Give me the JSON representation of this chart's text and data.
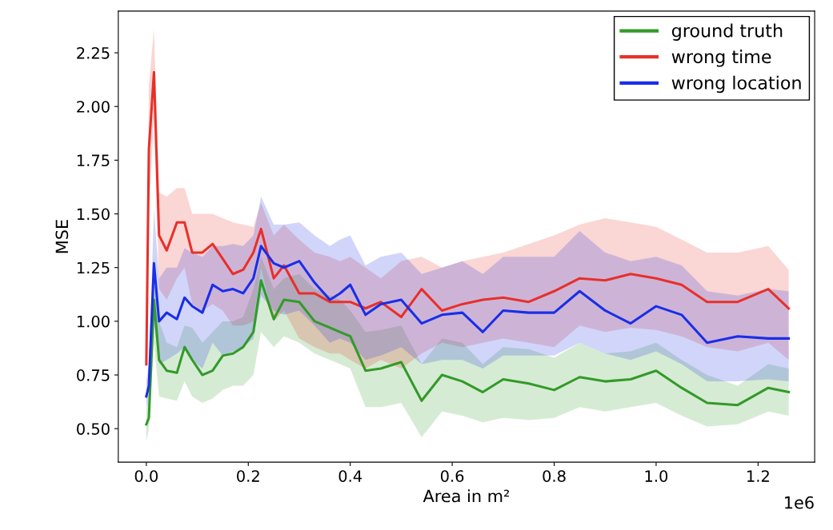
{
  "chart_data": {
    "type": "line",
    "xlabel": "Area in m²",
    "ylabel": "MSE",
    "x": [
      0,
      0.005,
      0.015,
      0.025,
      0.04,
      0.06,
      0.075,
      0.09,
      0.11,
      0.13,
      0.15,
      0.17,
      0.19,
      0.21,
      0.225,
      0.25,
      0.27,
      0.3,
      0.33,
      0.36,
      0.38,
      0.4,
      0.43,
      0.46,
      0.5,
      0.54,
      0.58,
      0.62,
      0.66,
      0.7,
      0.75,
      0.8,
      0.85,
      0.9,
      0.95,
      1.0,
      1.05,
      1.1,
      1.16,
      1.22,
      1.26
    ],
    "series": [
      {
        "name": "ground truth",
        "color": "#339a2a",
        "values": [
          0.52,
          0.55,
          1.1,
          0.82,
          0.77,
          0.76,
          0.88,
          0.82,
          0.75,
          0.77,
          0.84,
          0.85,
          0.88,
          0.95,
          1.19,
          1.01,
          1.1,
          1.09,
          1.0,
          0.97,
          0.95,
          0.93,
          0.77,
          0.78,
          0.81,
          0.63,
          0.75,
          0.72,
          0.67,
          0.73,
          0.71,
          0.68,
          0.74,
          0.72,
          0.73,
          0.77,
          0.69,
          0.62,
          0.61,
          0.69,
          0.67
        ],
        "lower": [
          0.44,
          0.5,
          0.9,
          0.65,
          0.64,
          0.63,
          0.72,
          0.65,
          0.62,
          0.64,
          0.68,
          0.7,
          0.7,
          0.75,
          0.95,
          0.88,
          0.93,
          0.9,
          0.85,
          0.82,
          0.8,
          0.78,
          0.6,
          0.6,
          0.62,
          0.46,
          0.58,
          0.56,
          0.53,
          0.55,
          0.54,
          0.55,
          0.6,
          0.58,
          0.6,
          0.62,
          0.56,
          0.51,
          0.52,
          0.58,
          0.56
        ],
        "upper": [
          0.6,
          0.62,
          1.3,
          1.0,
          0.9,
          0.88,
          0.98,
          0.97,
          0.9,
          0.95,
          1.0,
          1.0,
          1.02,
          1.15,
          1.3,
          1.15,
          1.2,
          1.22,
          1.15,
          1.12,
          1.1,
          1.05,
          0.95,
          0.96,
          0.98,
          0.8,
          0.92,
          0.9,
          0.8,
          0.88,
          0.87,
          0.83,
          0.9,
          0.85,
          0.86,
          0.9,
          0.82,
          0.75,
          0.7,
          0.8,
          0.78
        ]
      },
      {
        "name": "wrong time",
        "color": "#e8302a",
        "values": [
          0.8,
          1.8,
          2.16,
          1.4,
          1.33,
          1.46,
          1.46,
          1.32,
          1.32,
          1.36,
          1.29,
          1.22,
          1.24,
          1.32,
          1.43,
          1.2,
          1.26,
          1.13,
          1.13,
          1.09,
          1.09,
          1.09,
          1.06,
          1.09,
          1.02,
          1.15,
          1.05,
          1.08,
          1.1,
          1.11,
          1.09,
          1.14,
          1.2,
          1.19,
          1.22,
          1.2,
          1.17,
          1.09,
          1.09,
          1.15,
          1.06
        ],
        "lower": [
          0.72,
          1.5,
          1.95,
          1.15,
          1.1,
          1.2,
          1.25,
          1.08,
          1.05,
          1.08,
          1.05,
          0.98,
          0.98,
          1.0,
          1.25,
          1.0,
          1.05,
          0.92,
          0.88,
          0.85,
          0.85,
          0.82,
          0.78,
          0.82,
          0.78,
          0.85,
          0.9,
          0.88,
          0.9,
          0.92,
          0.9,
          0.88,
          0.98,
          0.95,
          0.97,
          0.96,
          0.93,
          0.88,
          0.86,
          0.9,
          0.82
        ],
        "upper": [
          0.88,
          2.1,
          2.36,
          1.6,
          1.58,
          1.62,
          1.62,
          1.5,
          1.5,
          1.5,
          1.48,
          1.46,
          1.45,
          1.44,
          1.55,
          1.4,
          1.45,
          1.38,
          1.32,
          1.3,
          1.28,
          1.3,
          1.25,
          1.2,
          1.28,
          1.3,
          1.25,
          1.28,
          1.3,
          1.32,
          1.36,
          1.4,
          1.45,
          1.48,
          1.46,
          1.44,
          1.38,
          1.32,
          1.32,
          1.35,
          1.24
        ]
      },
      {
        "name": "wrong location",
        "color": "#1a2ee8",
        "values": [
          0.65,
          0.7,
          1.27,
          1.0,
          1.04,
          1.01,
          1.11,
          1.07,
          1.04,
          1.17,
          1.14,
          1.15,
          1.13,
          1.2,
          1.35,
          1.27,
          1.25,
          1.28,
          1.18,
          1.1,
          1.13,
          1.17,
          1.03,
          1.08,
          1.1,
          0.99,
          1.03,
          1.04,
          0.95,
          1.05,
          1.04,
          1.04,
          1.14,
          1.05,
          0.99,
          1.07,
          1.03,
          0.9,
          0.93,
          0.92,
          0.92
        ],
        "lower": [
          0.6,
          0.62,
          1.0,
          0.8,
          0.82,
          0.85,
          0.88,
          0.82,
          0.78,
          0.9,
          0.84,
          0.86,
          0.88,
          0.92,
          1.12,
          1.05,
          1.03,
          1.05,
          0.98,
          0.9,
          0.92,
          0.9,
          0.82,
          0.84,
          0.88,
          0.8,
          0.82,
          0.82,
          0.78,
          0.84,
          0.84,
          0.84,
          0.9,
          0.85,
          0.82,
          0.86,
          0.8,
          0.72,
          0.72,
          0.73,
          0.72
        ],
        "upper": [
          0.72,
          0.8,
          1.52,
          1.2,
          1.25,
          1.25,
          1.34,
          1.32,
          1.3,
          1.35,
          1.35,
          1.36,
          1.35,
          1.4,
          1.58,
          1.45,
          1.45,
          1.46,
          1.4,
          1.35,
          1.38,
          1.4,
          1.26,
          1.3,
          1.32,
          1.22,
          1.25,
          1.28,
          1.22,
          1.3,
          1.3,
          1.3,
          1.42,
          1.32,
          1.28,
          1.3,
          1.26,
          1.14,
          1.12,
          1.15,
          1.14
        ]
      }
    ],
    "xlim": [
      -0.055,
      1.311
    ],
    "ylim": [
      0.344,
      2.444
    ],
    "xticks": [
      {
        "value": 0,
        "label": "0.0"
      },
      0.2,
      0.4,
      0.6,
      0.8,
      {
        "value": 1,
        "label": "1.0"
      },
      1.2
    ],
    "yticks": [
      {
        "value": 0.5,
        "label": "0.50"
      },
      0.75,
      {
        "value": 1.0,
        "label": "1.00"
      },
      1.25,
      {
        "value": 1.5,
        "label": "1.50"
      },
      1.75,
      {
        "value": 2.0,
        "label": "2.00"
      },
      2.25
    ],
    "annotations": [
      "1e6"
    ],
    "legend": "top right",
    "grid": false,
    "marker": "none",
    "line_style": "solid"
  }
}
